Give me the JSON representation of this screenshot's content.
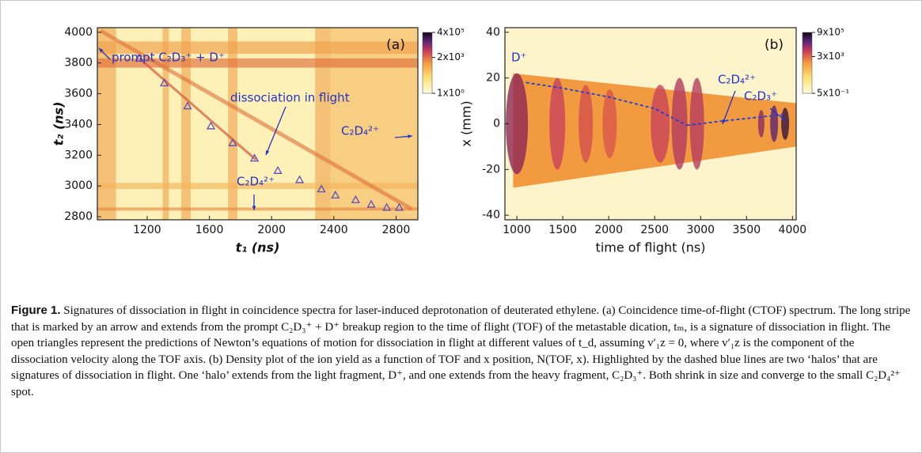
{
  "chart_data": [
    {
      "type": "heatmap",
      "panel_label": "(a)",
      "x_label": "t₁ (ns)",
      "y_label": "t₂ (ns)",
      "xlim": [
        880,
        2940
      ],
      "xticks": [
        1200,
        1600,
        2000,
        2400,
        2800
      ],
      "ylim": [
        2780,
        4030
      ],
      "yticks": [
        2800,
        3000,
        3200,
        3400,
        3600,
        3800,
        4000
      ],
      "colorbar": {
        "scale": "log",
        "lim": [
          1,
          400000
        ],
        "ticks": [
          {
            "value": 400000,
            "label": "4x10⁵"
          },
          {
            "value": 2000,
            "label": "2x10³"
          },
          {
            "value": 1,
            "label": "1x10⁰"
          }
        ]
      },
      "series": [
        {
          "marker": "triangle",
          "color": "#5a4fc0",
          "x": [
            1150,
            1310,
            1460,
            1610,
            1750,
            1890,
            2040,
            2180,
            2320,
            2410,
            2540,
            2640,
            2740,
            2820
          ],
          "values": [
            3830,
            3670,
            3520,
            3390,
            3280,
            3180,
            3100,
            3040,
            2980,
            2940,
            2910,
            2880,
            2860,
            2860
          ]
        }
      ],
      "annotations": [
        "prompt C₂D₃⁺ + D⁺",
        "dissociation in flight",
        "C₂D₄²⁺",
        "C₂D₄²⁺"
      ]
    },
    {
      "type": "heatmap",
      "panel_label": "(b)",
      "x_label": "time of flight (ns)",
      "y_label": "x (mm)",
      "xlim": [
        870,
        4040
      ],
      "xticks": [
        1000,
        1500,
        2000,
        2500,
        3000,
        3500,
        4000
      ],
      "ylim": [
        -42,
        42
      ],
      "yticks": [
        -40,
        -20,
        0,
        20,
        40
      ],
      "colorbar": {
        "scale": "log",
        "lim": [
          0.5,
          900000
        ],
        "ticks": [
          {
            "value": 900000,
            "label": "9x10⁵"
          },
          {
            "value": 3000,
            "label": "3x10³"
          },
          {
            "value": 0.5,
            "label": "5x10⁻¹"
          }
        ]
      },
      "series": [
        {
          "line": "dashed",
          "color": "#1f3fd6",
          "x": [
            1100,
            1500,
            2000,
            2500,
            2850
          ],
          "values": [
            18,
            15.5,
            11.7,
            6.6,
            -0.7
          ]
        },
        {
          "line": "dashed",
          "color": "#1f3fd6",
          "x": [
            2850,
            3200,
            3500,
            3900
          ],
          "values": [
            -0.7,
            1,
            2.3,
            4
          ]
        }
      ],
      "annotations": [
        "D⁺",
        "C₂D₄²⁺",
        "C₂D₃⁺"
      ]
    }
  ],
  "caption": {
    "label": "Figure 1.",
    "text": "Signatures of dissociation in flight in coincidence spectra for laser-induced deprotonation of deuterated ethylene. (a) Coincidence time-of-flight (CTOF) spectrum. The long stripe that is marked by an arrow and extends from the prompt C₂D₃⁺ + D⁺ breakup region to the time of flight (TOF) of the metastable dication, tₘ, is a signature of dissociation in flight. The open triangles represent the predictions of Newton’s equations of motion for dissociation in flight at different values of t_d, assuming v′₁z = 0, where v′₁z is the component of the dissociation velocity along the TOF axis. (b) Density plot of the ion yield as a function of TOF and x position, N(TOF, x). Highlighted by the dashed blue lines are two ‘halos’ that are signatures of dissociation in flight. One ‘halo’ extends from the light fragment, D⁺, and one extends from the heavy fragment, C₂D₃⁺. Both shrink in size and converge to the small C₂D₄²⁺ spot."
  }
}
